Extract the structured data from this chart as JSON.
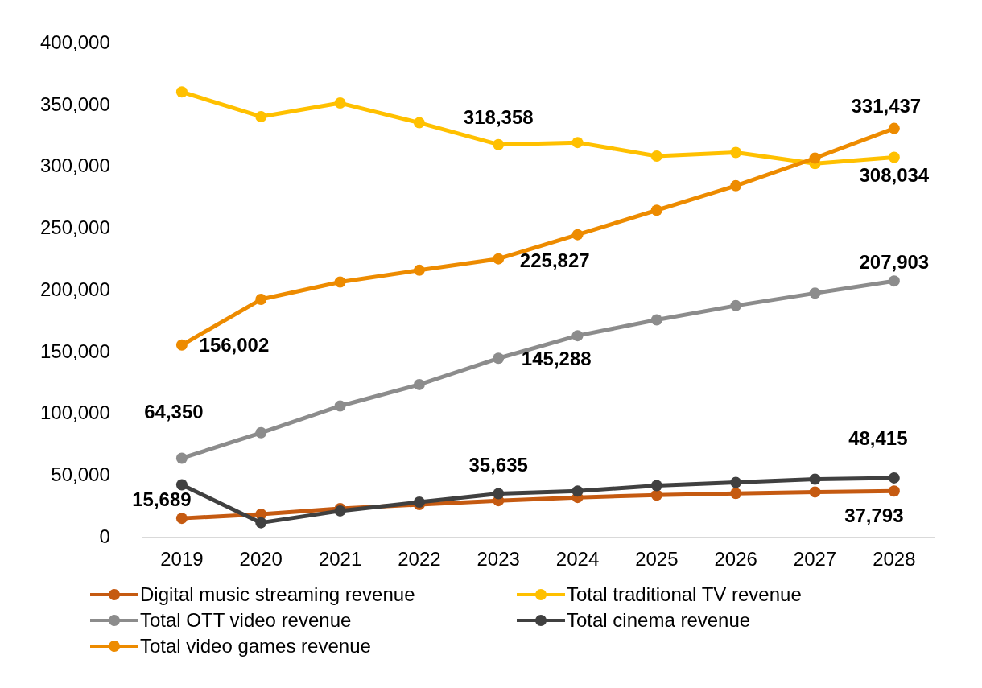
{
  "chart_data": {
    "type": "line",
    "categories": [
      "2019",
      "2020",
      "2021",
      "2022",
      "2023",
      "2024",
      "2025",
      "2026",
      "2027",
      "2028"
    ],
    "ylim": [
      0,
      400000
    ],
    "yticks": [
      0,
      {
        "value": 50000,
        "label": "50,000"
      },
      {
        "value": 100000,
        "label": "100,000"
      },
      {
        "value": 150000,
        "label": "150,000"
      },
      {
        "value": 200000,
        "label": "200,000"
      },
      {
        "value": 250000,
        "label": "250,000"
      },
      {
        "value": 300000,
        "label": "300,000"
      },
      {
        "value": 350000,
        "label": "350,000"
      },
      {
        "value": 400000,
        "label": "400,000"
      }
    ],
    "grid": false,
    "legend": "bottom",
    "marker": "circle",
    "series": [
      {
        "name": "Digital music streaming revenue",
        "color": "#c55a11",
        "values": [
          15689,
          19000,
          23600,
          26800,
          30000,
          32600,
          34500,
          35800,
          37000,
          37793
        ],
        "value_labels": [
          "15,689",
          null,
          null,
          null,
          null,
          null,
          null,
          null,
          null,
          "37,793"
        ]
      },
      {
        "name": "Total traditional TV revenue",
        "color": "#ffc000",
        "values": [
          361000,
          341000,
          352000,
          336000,
          318358,
          320000,
          309000,
          312000,
          303000,
          308034
        ],
        "value_labels": [
          null,
          null,
          null,
          null,
          "318,358",
          null,
          null,
          null,
          null,
          "308,034"
        ]
      },
      {
        "name": "Total OTT video revenue",
        "color": "#8c8c8c",
        "values": [
          64350,
          85000,
          106700,
          124000,
          145288,
          163600,
          176400,
          187900,
          198000,
          207903
        ],
        "value_labels": [
          "64,350",
          null,
          null,
          null,
          "145,288",
          null,
          null,
          null,
          null,
          "207,903"
        ]
      },
      {
        "name": "Total cinema revenue",
        "color": "#404040",
        "values": [
          42800,
          12100,
          21700,
          28800,
          35635,
          37700,
          42200,
          44700,
          47300,
          48415
        ],
        "value_labels": [
          null,
          null,
          null,
          null,
          "35,635",
          null,
          null,
          null,
          null,
          "48,415"
        ]
      },
      {
        "name": "Total video games revenue",
        "color": "#ed8b00",
        "values": [
          156002,
          193000,
          207000,
          216600,
          225827,
          245400,
          265200,
          285000,
          307400,
          331437
        ],
        "value_labels": [
          "156,002",
          null,
          null,
          null,
          "225,827",
          null,
          null,
          null,
          null,
          "331,437"
        ]
      }
    ]
  }
}
